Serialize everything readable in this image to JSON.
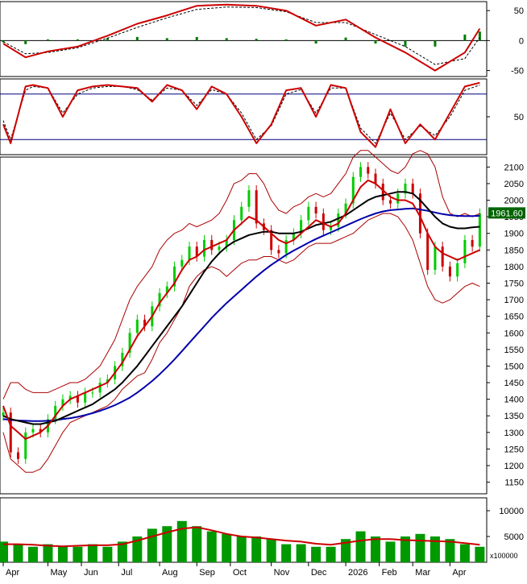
{
  "colors": {
    "background": "#ffffff",
    "frame": "#000000",
    "grid": "#c8c8c8",
    "macd_line": "#cc0000",
    "macd_signal": "#000000",
    "macd_histogram": "#007a00",
    "stoch_k": "#cc0000",
    "stoch_d": "#000000",
    "stoch_levels": "#000080",
    "candle_up": "#00cc00",
    "candle_down": "#cc0000",
    "bollinger": "#aa0000",
    "ma_short": "#cc0000",
    "ma_mid": "#000000",
    "ma_long": "#0000aa",
    "volume_bar": "#009900",
    "volume_ma": "#cc0000",
    "price_tag_bg": "#006400",
    "price_tag_text": "#ffffff"
  },
  "chart_data": [
    {
      "type": "line",
      "panel": "macd",
      "y_ticks": [
        "50",
        "0",
        "-50"
      ],
      "ylim": [
        -60,
        65
      ],
      "x": [
        0,
        6,
        12,
        20,
        28,
        36,
        44,
        52,
        60,
        68,
        76,
        84,
        92,
        100,
        108,
        116,
        124,
        128
      ],
      "series": [
        {
          "role": "macd",
          "values": [
            -5,
            -28,
            -18,
            -10,
            8,
            28,
            42,
            58,
            60,
            58,
            50,
            25,
            35,
            5,
            -20,
            -50,
            -20,
            20
          ]
        },
        {
          "role": "signal",
          "values": [
            -2,
            -22,
            -20,
            -12,
            4,
            22,
            38,
            52,
            56,
            55,
            48,
            30,
            30,
            10,
            -10,
            -40,
            -30,
            5
          ]
        },
        {
          "role": "histogram",
          "values": [
            -3,
            -6,
            2,
            2,
            4,
            6,
            4,
            6,
            4,
            3,
            2,
            -5,
            5,
            -5,
            -10,
            -10,
            10,
            15
          ]
        }
      ]
    },
    {
      "type": "line",
      "panel": "stochastic",
      "y_ticks": [
        "50"
      ],
      "ylim": [
        0,
        100
      ],
      "levels": [
        80,
        20
      ],
      "x": [
        0,
        2,
        6,
        8,
        12,
        16,
        20,
        24,
        28,
        32,
        36,
        40,
        44,
        48,
        52,
        56,
        60,
        64,
        68,
        72,
        76,
        80,
        84,
        88,
        92,
        96,
        100,
        104,
        108,
        112,
        116,
        120,
        124,
        128
      ],
      "series": [
        {
          "role": "%K",
          "values": [
            40,
            15,
            90,
            92,
            88,
            50,
            85,
            90,
            92,
            90,
            88,
            70,
            92,
            85,
            60,
            90,
            80,
            50,
            15,
            40,
            85,
            88,
            50,
            92,
            88,
            30,
            10,
            60,
            15,
            40,
            20,
            55,
            90,
            95
          ]
        },
        {
          "role": "%D",
          "values": [
            45,
            20,
            85,
            90,
            88,
            55,
            80,
            88,
            90,
            90,
            86,
            72,
            88,
            85,
            65,
            86,
            80,
            55,
            20,
            38,
            80,
            86,
            55,
            88,
            88,
            35,
            15,
            55,
            20,
            38,
            25,
            50,
            85,
            92
          ]
        }
      ]
    },
    {
      "type": "line",
      "panel": "price",
      "x_tick_labels": [
        "Apr",
        "May",
        "Jun",
        "Jul",
        "Aug",
        "Sep",
        "Oct",
        "Nov",
        "Dec",
        "2026",
        "Feb",
        "Mar",
        "Apr"
      ],
      "x_tick_positions": [
        0,
        12,
        21,
        31,
        42,
        52,
        61,
        72,
        82,
        92,
        101,
        110,
        120
      ],
      "y_ticks": [
        2100,
        2050,
        2000,
        1950,
        1900,
        1850,
        1800,
        1750,
        1700,
        1650,
        1600,
        1550,
        1500,
        1450,
        1400,
        1350,
        1300,
        1250,
        1200,
        1150
      ],
      "ylim": [
        1115,
        2130
      ],
      "last_price": "1961.60",
      "x": [
        0,
        2,
        4,
        6,
        8,
        10,
        12,
        14,
        16,
        18,
        20,
        22,
        24,
        26,
        28,
        30,
        32,
        34,
        36,
        38,
        40,
        42,
        44,
        46,
        48,
        50,
        52,
        54,
        56,
        58,
        60,
        62,
        64,
        66,
        68,
        70,
        72,
        74,
        76,
        78,
        80,
        82,
        84,
        86,
        88,
        90,
        92,
        94,
        96,
        98,
        100,
        102,
        104,
        106,
        108,
        110,
        112,
        114,
        116,
        118,
        120,
        122,
        124,
        126,
        128
      ],
      "close": [
        1360,
        1240,
        1220,
        1300,
        1310,
        1300,
        1340,
        1380,
        1400,
        1410,
        1390,
        1420,
        1420,
        1450,
        1460,
        1500,
        1540,
        1600,
        1640,
        1620,
        1680,
        1720,
        1740,
        1800,
        1820,
        1860,
        1830,
        1880,
        1850,
        1860,
        1880,
        1940,
        1980,
        2030,
        1930,
        1910,
        1850,
        1840,
        1880,
        1900,
        1940,
        1980,
        1960,
        1910,
        1920,
        1960,
        1990,
        2070,
        2100,
        2080,
        2050,
        2000,
        1990,
        2020,
        2050,
        2020,
        1900,
        1790,
        1860,
        1800,
        1770,
        1810,
        1880,
        1860,
        1960
      ],
      "series": [
        {
          "role": "ma-short",
          "values": [
            1380,
            1320,
            1300,
            1280,
            1290,
            1300,
            1320,
            1350,
            1380,
            1400,
            1410,
            1420,
            1430,
            1440,
            1450,
            1480,
            1510,
            1550,
            1590,
            1620,
            1650,
            1690,
            1720,
            1750,
            1790,
            1820,
            1830,
            1850,
            1860,
            1870,
            1880,
            1910,
            1930,
            1950,
            1940,
            1920,
            1900,
            1880,
            1870,
            1880,
            1900,
            1920,
            1940,
            1930,
            1920,
            1930,
            1960,
            2000,
            2040,
            2060,
            2050,
            2030,
            2010,
            2000,
            2000,
            1990,
            1950,
            1900,
            1860,
            1840,
            1830,
            1820,
            1830,
            1840,
            1850
          ]
        },
        {
          "role": "ma-mid",
          "values": [
            1350,
            1340,
            1335,
            1330,
            1325,
            1325,
            1330,
            1335,
            1345,
            1355,
            1365,
            1375,
            1385,
            1400,
            1415,
            1430,
            1450,
            1475,
            1500,
            1530,
            1560,
            1590,
            1620,
            1650,
            1680,
            1715,
            1750,
            1785,
            1815,
            1840,
            1860,
            1875,
            1885,
            1895,
            1900,
            1905,
            1905,
            1900,
            1900,
            1900,
            1905,
            1915,
            1925,
            1930,
            1935,
            1945,
            1955,
            1970,
            1985,
            2000,
            2010,
            2015,
            2020,
            2025,
            2025,
            2020,
            2000,
            1975,
            1950,
            1930,
            1920,
            1915,
            1915,
            1918,
            1920
          ]
        },
        {
          "role": "ma-long",
          "values": [
            1340,
            1338,
            1336,
            1335,
            1334,
            1334,
            1335,
            1337,
            1340,
            1343,
            1347,
            1352,
            1358,
            1365,
            1373,
            1382,
            1393,
            1405,
            1420,
            1437,
            1455,
            1475,
            1497,
            1520,
            1545,
            1570,
            1595,
            1620,
            1645,
            1668,
            1690,
            1710,
            1730,
            1750,
            1770,
            1788,
            1805,
            1820,
            1835,
            1848,
            1860,
            1872,
            1883,
            1893,
            1903,
            1913,
            1923,
            1933,
            1943,
            1952,
            1960,
            1966,
            1970,
            1972,
            1974,
            1975,
            1972,
            1968,
            1963,
            1958,
            1955,
            1953,
            1952,
            1952,
            1953
          ]
        },
        {
          "role": "bollinger-upper",
          "values": [
            1400,
            1450,
            1450,
            1430,
            1420,
            1420,
            1420,
            1430,
            1440,
            1450,
            1450,
            1460,
            1480,
            1500,
            1540,
            1580,
            1640,
            1700,
            1740,
            1770,
            1800,
            1850,
            1880,
            1900,
            1910,
            1930,
            1920,
            1930,
            1940,
            1960,
            2000,
            2050,
            2060,
            2080,
            2080,
            2050,
            2000,
            1970,
            1960,
            1980,
            1990,
            2010,
            2020,
            2010,
            2020,
            2050,
            2080,
            2130,
            2150,
            2150,
            2130,
            2110,
            2090,
            2080,
            2100,
            2140,
            2150,
            2140,
            2100,
            2010,
            1960,
            1950,
            1960,
            1950,
            1960
          ]
        },
        {
          "role": "bollinger-lower",
          "values": [
            1300,
            1220,
            1200,
            1180,
            1180,
            1190,
            1220,
            1260,
            1300,
            1330,
            1340,
            1350,
            1360,
            1370,
            1380,
            1400,
            1430,
            1450,
            1470,
            1480,
            1520,
            1570,
            1600,
            1640,
            1680,
            1740,
            1770,
            1790,
            1800,
            1790,
            1770,
            1790,
            1810,
            1820,
            1820,
            1830,
            1830,
            1820,
            1810,
            1820,
            1840,
            1860,
            1870,
            1870,
            1870,
            1880,
            1890,
            1900,
            1920,
            1940,
            1950,
            1960,
            1960,
            1950,
            1920,
            1880,
            1810,
            1740,
            1700,
            1690,
            1700,
            1720,
            1740,
            1750,
            1740
          ]
        }
      ]
    },
    {
      "type": "bar",
      "panel": "volume",
      "y_ticks": [
        "10000",
        "5000"
      ],
      "unit_label": "x100000",
      "ylim": [
        0,
        12500
      ],
      "x": [
        0,
        4,
        8,
        12,
        16,
        20,
        24,
        28,
        32,
        36,
        40,
        44,
        48,
        52,
        56,
        60,
        64,
        68,
        72,
        76,
        80,
        84,
        88,
        92,
        96,
        100,
        104,
        108,
        112,
        116,
        120,
        124,
        128
      ],
      "series": [
        {
          "role": "volume",
          "values": [
            4000,
            3500,
            3000,
            3500,
            3000,
            3000,
            3500,
            3000,
            4000,
            5000,
            6500,
            7000,
            8000,
            7000,
            6000,
            5500,
            5000,
            5000,
            4500,
            3500,
            3500,
            3000,
            3000,
            4500,
            6000,
            5000,
            4000,
            5000,
            5500,
            5000,
            4500,
            3500,
            3000
          ]
        },
        {
          "role": "volume-ma",
          "values": [
            3500,
            3500,
            3400,
            3200,
            3100,
            3200,
            3300,
            3300,
            3500,
            4200,
            5000,
            5800,
            6500,
            6800,
            6200,
            5500,
            5000,
            4800,
            4500,
            4200,
            4000,
            3600,
            3400,
            3800,
            4200,
            4500,
            4500,
            4300,
            4200,
            4100,
            4000,
            3700,
            3400
          ]
        }
      ]
    }
  ]
}
